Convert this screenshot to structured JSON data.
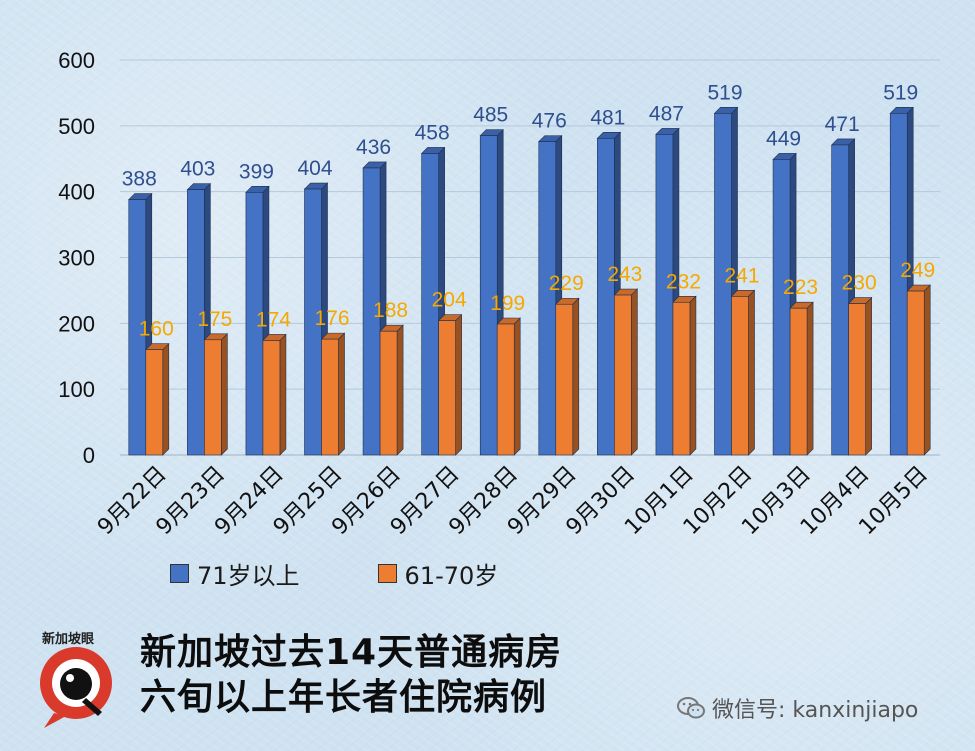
{
  "chart_data": {
    "type": "bar",
    "categories": [
      "9月22日",
      "9月23日",
      "9月24日",
      "9月25日",
      "9月26日",
      "9月27日",
      "9月28日",
      "9月29日",
      "9月30日",
      "10月1日",
      "10月2日",
      "10月3日",
      "10月4日",
      "10月5日"
    ],
    "series": [
      {
        "name": "71岁以上",
        "color": "#4472c4",
        "values": [
          388,
          403,
          399,
          404,
          436,
          458,
          485,
          476,
          481,
          487,
          519,
          449,
          471,
          519
        ]
      },
      {
        "name": "61-70岁",
        "color": "#ed7d31",
        "values": [
          160,
          175,
          174,
          176,
          188,
          204,
          199,
          229,
          243,
          232,
          241,
          223,
          230,
          249
        ]
      }
    ],
    "y_ticks": [
      0,
      100,
      200,
      300,
      400,
      500,
      600
    ],
    "ylim": [
      0,
      600
    ],
    "grid": true,
    "legend_position": "bottom-left",
    "label_colors": {
      "71岁以上": "#2f4f8f",
      "61-70岁": "#f5a800"
    }
  },
  "footer": {
    "title_line1": "新加坡过去14天普通病房",
    "title_line2": "六旬以上年长者住院病例"
  },
  "logo": {
    "text": "新加坡眼"
  },
  "wechat": {
    "label": "微信号: kanxinjiapo"
  }
}
